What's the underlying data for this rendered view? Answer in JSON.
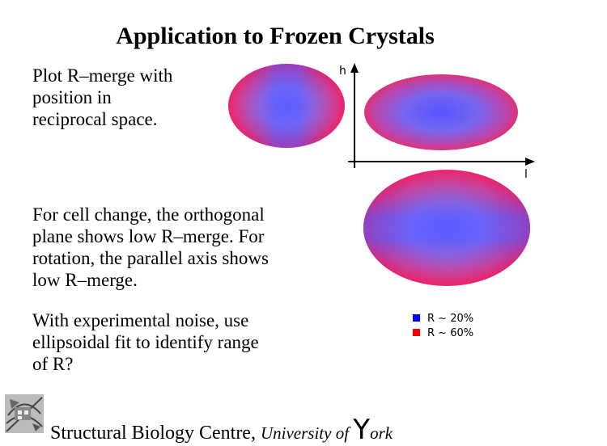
{
  "slide": {
    "title": "Application to Frozen Crystals",
    "para1": [
      "Plot R–merge with",
      "position in",
      "reciprocal space."
    ],
    "para2": [
      "For cell change, the orthogonal",
      "plane shows low R–merge. For",
      "rotation, the parallel axis shows",
      "low R–merge."
    ],
    "para3": [
      "With experimental noise, use",
      "ellipsoidal fit to identify range",
      "of R?"
    ]
  },
  "axes": {
    "h_label": "h",
    "l_label": "l"
  },
  "legend": [
    {
      "label": "R ~ 20%",
      "color": "#0000ff"
    },
    {
      "label": "R ~ 60%",
      "color": "#ff0000"
    }
  ],
  "colors": {
    "low_r": "#5555ee",
    "mid_r": "#8866dd",
    "high_r": "#dd3377",
    "edge_r": "#ee2255"
  },
  "footer": {
    "org": "Structural Biology Centre,",
    "univ_prefix": "University of",
    "univ_initial": "Y",
    "univ_rest": "ork"
  }
}
